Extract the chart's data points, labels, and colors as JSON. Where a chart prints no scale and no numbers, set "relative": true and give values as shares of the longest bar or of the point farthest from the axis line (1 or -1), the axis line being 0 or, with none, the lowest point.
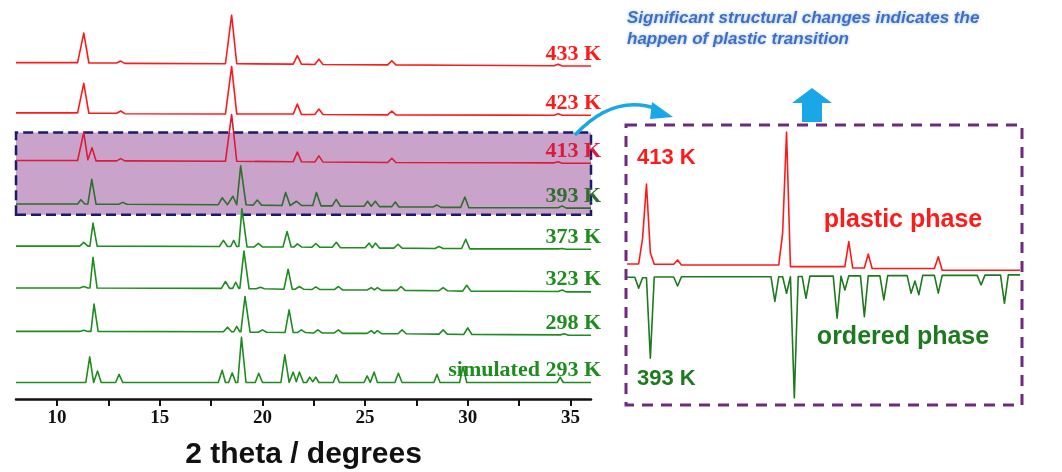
{
  "chart_data": [
    {
      "type": "line",
      "relative": true,
      "xlabel": "2 theta / degrees",
      "xlim": [
        8,
        36
      ],
      "xticks": [
        10,
        {
          "value": 12.5,
          "label": null
        },
        15,
        {
          "value": 17.5,
          "label": null
        },
        20,
        {
          "value": 22.5,
          "label": null
        },
        25,
        {
          "value": 27.5,
          "label": null
        },
        30,
        {
          "value": 32.5,
          "label": null
        },
        35
      ],
      "marker": "none",
      "legend": false,
      "grid": false,
      "bands": [
        {
          "axis": "y",
          "from": 0.48,
          "to": 0.694,
          "color": "#c9a3c9"
        }
      ],
      "series": [
        {
          "name": "433 K",
          "color": "#ff1a1a",
          "x": [
            8,
            11.0,
            11.3,
            11.55,
            12.9,
            13.1,
            13.3,
            18.2,
            18.5,
            18.75,
            21.5,
            21.7,
            21.9,
            22.55,
            22.75,
            22.95,
            26.1,
            26.3,
            26.5,
            29.5,
            34.2,
            34.4,
            34.6,
            36
          ],
          "values": [
            0.876,
            0.876,
            0.953,
            0.875,
            0.875,
            0.88,
            0.874,
            0.873,
            1.0,
            0.873,
            0.872,
            0.894,
            0.872,
            0.871,
            0.885,
            0.871,
            0.87,
            0.881,
            0.87,
            0.869,
            0.868,
            0.872,
            0.867,
            0.867
          ]
        },
        {
          "name": "423 K",
          "color": "#ff1a1a",
          "x": [
            8,
            11.0,
            11.3,
            11.55,
            12.9,
            13.1,
            13.3,
            18.2,
            18.5,
            18.75,
            21.5,
            21.7,
            21.9,
            22.55,
            22.75,
            22.95,
            26.1,
            26.3,
            26.5,
            34.2,
            34.4,
            34.6,
            36
          ],
          "values": [
            0.745,
            0.745,
            0.822,
            0.744,
            0.744,
            0.75,
            0.743,
            0.742,
            0.866,
            0.742,
            0.742,
            0.768,
            0.741,
            0.741,
            0.755,
            0.741,
            0.74,
            0.75,
            0.74,
            0.739,
            0.743,
            0.739,
            0.739
          ]
        },
        {
          "name": "413 K",
          "color": "#dd1a3a",
          "x": [
            8,
            11.0,
            11.3,
            11.5,
            11.7,
            11.9,
            12.9,
            13.1,
            13.3,
            18.2,
            18.5,
            18.75,
            21.5,
            21.7,
            21.9,
            22.55,
            22.75,
            22.95,
            26.1,
            26.3,
            26.5,
            34.2,
            34.4,
            34.6,
            36
          ],
          "values": [
            0.621,
            0.621,
            0.694,
            0.623,
            0.654,
            0.62,
            0.62,
            0.626,
            0.62,
            0.619,
            0.741,
            0.619,
            0.618,
            0.643,
            0.618,
            0.617,
            0.633,
            0.617,
            0.616,
            0.627,
            0.616,
            0.615,
            0.618,
            0.614,
            0.614
          ]
        },
        {
          "name": "393 K",
          "color": "#2e6e2e",
          "x": [
            8,
            11.0,
            11.16,
            11.35,
            11.5,
            11.69,
            11.9,
            13.0,
            13.2,
            13.4,
            17.85,
            18.04,
            18.3,
            18.56,
            18.75,
            18.94,
            19.2,
            19.55,
            19.75,
            19.95,
            20.95,
            21.13,
            21.35,
            21.66,
            21.9,
            22.45,
            22.63,
            22.85,
            23.4,
            23.59,
            23.8,
            24.95,
            25.12,
            25.3,
            25.5,
            25.7,
            26.3,
            26.47,
            26.65,
            28.3,
            28.5,
            28.7,
            29.65,
            29.86,
            30.05,
            34.4,
            34.59,
            34.8,
            36
          ],
          "values": [
            0.508,
            0.508,
            0.519,
            0.508,
            0.508,
            0.572,
            0.507,
            0.507,
            0.512,
            0.507,
            0.506,
            0.524,
            0.506,
            0.528,
            0.506,
            0.607,
            0.506,
            0.505,
            0.518,
            0.505,
            0.504,
            0.538,
            0.504,
            0.515,
            0.504,
            0.504,
            0.538,
            0.503,
            0.503,
            0.52,
            0.502,
            0.502,
            0.515,
            0.502,
            0.515,
            0.501,
            0.501,
            0.513,
            0.5,
            0.5,
            0.505,
            0.499,
            0.499,
            0.526,
            0.498,
            0.498,
            0.503,
            0.497,
            0.497
          ]
        },
        {
          "name": "373 K",
          "color": "#1e8c1e",
          "x": [
            8,
            11.1,
            11.3,
            11.5,
            11.6,
            11.75,
            11.95,
            17.9,
            18.1,
            18.3,
            18.45,
            18.6,
            18.75,
            18.85,
            19.0,
            19.25,
            19.6,
            19.8,
            20.0,
            21.0,
            21.2,
            21.4,
            21.55,
            21.7,
            21.9,
            22.4,
            22.6,
            22.8,
            23.4,
            23.6,
            23.8,
            25.0,
            25.2,
            25.35,
            25.5,
            25.7,
            26.4,
            26.6,
            26.8,
            28.4,
            28.6,
            28.8,
            29.7,
            29.9,
            30.1,
            34.4,
            34.6,
            34.8,
            36
          ],
          "values": [
            0.398,
            0.398,
            0.408,
            0.398,
            0.398,
            0.458,
            0.398,
            0.397,
            0.413,
            0.397,
            0.397,
            0.413,
            0.397,
            0.397,
            0.495,
            0.396,
            0.396,
            0.405,
            0.396,
            0.396,
            0.436,
            0.396,
            0.396,
            0.404,
            0.396,
            0.395,
            0.405,
            0.395,
            0.395,
            0.408,
            0.394,
            0.394,
            0.406,
            0.394,
            0.406,
            0.393,
            0.393,
            0.403,
            0.393,
            0.392,
            0.397,
            0.392,
            0.392,
            0.416,
            0.391,
            0.391,
            0.392,
            0.39,
            0.39
          ]
        },
        {
          "name": "323 K",
          "color": "#1e8c1e",
          "x": [
            8,
            11.1,
            11.3,
            11.5,
            11.6,
            11.75,
            11.95,
            18.0,
            18.2,
            18.4,
            18.55,
            18.7,
            18.85,
            18.9,
            19.1,
            19.35,
            19.7,
            19.9,
            20.1,
            21.05,
            21.25,
            21.45,
            21.6,
            21.8,
            22.0,
            22.4,
            22.6,
            22.8,
            23.5,
            23.7,
            23.9,
            25.1,
            25.3,
            25.45,
            25.6,
            25.8,
            26.55,
            26.75,
            26.95,
            28.6,
            28.8,
            29.0,
            29.75,
            29.95,
            30.15,
            34.4,
            34.6,
            34.8,
            36
          ],
          "values": [
            0.289,
            0.289,
            0.293,
            0.289,
            0.289,
            0.369,
            0.289,
            0.288,
            0.306,
            0.288,
            0.288,
            0.304,
            0.288,
            0.288,
            0.385,
            0.287,
            0.287,
            0.291,
            0.287,
            0.286,
            0.338,
            0.286,
            0.286,
            0.293,
            0.286,
            0.285,
            0.292,
            0.285,
            0.285,
            0.293,
            0.284,
            0.284,
            0.29,
            0.284,
            0.29,
            0.283,
            0.283,
            0.293,
            0.283,
            0.282,
            0.29,
            0.282,
            0.281,
            0.296,
            0.281,
            0.28,
            0.284,
            0.279,
            0.279
          ]
        },
        {
          "name": "298 K",
          "color": "#1e8c1e",
          "x": [
            8,
            11.1,
            11.3,
            11.5,
            11.65,
            11.8,
            12.0,
            18.1,
            18.3,
            18.5,
            18.6,
            18.75,
            18.9,
            18.95,
            19.15,
            19.4,
            19.8,
            20.0,
            20.2,
            21.1,
            21.3,
            21.5,
            21.7,
            21.9,
            22.1,
            22.5,
            22.7,
            22.9,
            23.5,
            23.7,
            23.9,
            25.1,
            25.3,
            25.45,
            25.6,
            25.8,
            26.6,
            26.8,
            27.0,
            28.6,
            28.8,
            29.0,
            29.8,
            30.0,
            30.2,
            34.5,
            34.7,
            34.9,
            36
          ],
          "values": [
            0.176,
            0.176,
            0.179,
            0.176,
            0.176,
            0.247,
            0.176,
            0.175,
            0.187,
            0.175,
            0.175,
            0.189,
            0.175,
            0.175,
            0.267,
            0.174,
            0.174,
            0.18,
            0.174,
            0.173,
            0.232,
            0.173,
            0.173,
            0.18,
            0.173,
            0.172,
            0.18,
            0.172,
            0.172,
            0.18,
            0.171,
            0.171,
            0.178,
            0.171,
            0.178,
            0.17,
            0.17,
            0.18,
            0.17,
            0.169,
            0.18,
            0.169,
            0.168,
            0.185,
            0.168,
            0.167,
            0.17,
            0.166,
            0.166
          ]
        },
        {
          "name": "simulated 293 K",
          "color": "#1e8c1e",
          "x": [
            8,
            11.4,
            11.59,
            11.78,
            11.97,
            12.15,
            12.85,
            13.02,
            13.2,
            17.85,
            18.04,
            18.2,
            18.35,
            18.53,
            18.7,
            18.8,
            18.98,
            19.2,
            19.65,
            19.82,
            20.0,
            20.9,
            21.09,
            21.3,
            21.5,
            21.65,
            21.8,
            22.0,
            22.15,
            22.3,
            22.45,
            22.6,
            22.75,
            23.45,
            23.6,
            23.75,
            24.95,
            25.1,
            25.25,
            25.44,
            25.6,
            26.45,
            26.62,
            26.8,
            28.35,
            28.5,
            28.65,
            29.6,
            29.77,
            29.95,
            34.35,
            34.5,
            34.65,
            36
          ],
          "values": [
            0.043,
            0.043,
            0.11,
            0.043,
            0.073,
            0.043,
            0.043,
            0.064,
            0.043,
            0.043,
            0.075,
            0.043,
            0.043,
            0.068,
            0.043,
            0.043,
            0.161,
            0.043,
            0.043,
            0.067,
            0.043,
            0.043,
            0.115,
            0.043,
            0.07,
            0.045,
            0.07,
            0.043,
            0.043,
            0.057,
            0.045,
            0.057,
            0.043,
            0.043,
            0.063,
            0.043,
            0.043,
            0.06,
            0.043,
            0.07,
            0.043,
            0.043,
            0.067,
            0.043,
            0.043,
            0.064,
            0.043,
            0.043,
            0.084,
            0.043,
            0.043,
            0.057,
            0.043,
            0.043
          ]
        }
      ]
    },
    {
      "type": "line",
      "relative": true,
      "title": "Significant structural changes indicates the happen of plastic transition",
      "tick_labels": false,
      "marker": "none",
      "legend": "left",
      "grid": false,
      "categories": [
        null,
        null,
        null,
        null,
        null,
        null,
        null,
        null,
        null,
        null,
        null,
        null,
        null,
        null,
        null,
        null,
        null,
        null,
        null,
        null,
        null,
        null,
        null,
        null,
        null,
        null,
        null,
        null,
        null,
        null,
        null,
        null,
        null,
        null,
        null,
        null,
        null,
        null,
        null,
        null,
        null,
        null,
        null,
        null,
        null,
        null,
        null,
        null,
        null,
        null,
        null,
        null,
        null,
        null,
        null,
        null,
        null,
        null,
        null,
        null,
        null,
        null,
        null,
        null,
        null,
        null,
        null,
        null,
        null,
        null,
        null,
        null,
        null,
        null,
        null,
        null,
        null,
        null,
        null,
        null,
        null,
        null,
        null,
        null,
        null,
        null,
        null,
        null,
        null,
        null,
        null,
        null,
        null,
        null,
        null,
        null,
        null,
        null,
        null,
        null,
        null,
        null
      ],
      "annotations": [
        "plastic phase",
        "ordered phase"
      ],
      "series": [
        {
          "name": "413 K",
          "color": "#ff1a1a",
          "values": [
            0.504,
            0.504,
            0.504,
            0.504,
            0.6,
            0.804,
            0.546,
            0.503,
            0.503,
            0.503,
            0.503,
            0.503,
            0.503,
            0.519,
            0.5,
            0.5,
            0.5,
            0.5,
            0.5,
            0.5,
            0.5,
            0.5,
            0.5,
            0.5,
            0.5,
            0.5,
            0.5,
            0.5,
            0.5,
            0.5,
            0.5,
            0.5,
            0.5,
            0.5,
            0.5,
            0.5,
            0.5,
            0.5,
            0.5,
            0.5,
            0.62,
            1.0,
            0.494,
            0.494,
            0.494,
            0.494,
            0.494,
            0.494,
            0.494,
            0.494,
            0.494,
            0.494,
            0.494,
            0.494,
            0.494,
            0.494,
            0.494,
            0.588,
            0.489,
            0.489,
            0.489,
            0.489,
            0.541,
            0.487,
            0.487,
            0.487,
            0.487,
            0.487,
            0.487,
            0.487,
            0.487,
            0.487,
            0.487,
            0.487,
            0.487,
            0.487,
            0.487,
            0.487,
            0.487,
            0.487,
            0.531,
            0.48,
            0.48,
            0.48,
            0.48,
            0.48,
            0.48,
            0.48,
            0.48,
            0.48,
            0.48,
            0.48,
            0.48,
            0.48,
            0.48,
            0.48,
            0.48,
            0.48,
            0.48,
            0.48,
            0.48,
            0.48
          ]
        },
        {
          "name": "393 K",
          "color": "#1e7a1e",
          "values": [
            0.454,
            0.454,
            0.454,
            0.413,
            0.452,
            0.452,
            0.15,
            0.455,
            0.455,
            0.455,
            0.455,
            0.455,
            0.455,
            0.421,
            0.456,
            0.456,
            0.456,
            0.456,
            0.456,
            0.456,
            0.456,
            0.456,
            0.456,
            0.456,
            0.456,
            0.456,
            0.456,
            0.456,
            0.456,
            0.456,
            0.456,
            0.456,
            0.456,
            0.456,
            0.456,
            0.456,
            0.456,
            0.456,
            0.363,
            0.456,
            0.456,
            0.394,
            0.456,
            0,
            0.457,
            0.457,
            0.375,
            0.458,
            0.458,
            0.458,
            0.458,
            0.458,
            0.458,
            0.458,
            0.3,
            0.458,
            0.406,
            0.459,
            0.459,
            0.459,
            0.459,
            0.306,
            0.459,
            0.459,
            0.459,
            0.459,
            0.369,
            0.46,
            0.46,
            0.46,
            0.46,
            0.46,
            0.46,
            0.394,
            0.44,
            0.388,
            0.461,
            0.461,
            0.461,
            0.461,
            0.394,
            0.461,
            0.461,
            0.461,
            0.461,
            0.461,
            0.461,
            0.461,
            0.461,
            0.461,
            0.461,
            0.425,
            0.462,
            0.462,
            0.462,
            0.462,
            0.462,
            0.356,
            0.463,
            0.463,
            0.463,
            0.463
          ]
        }
      ]
    }
  ]
}
